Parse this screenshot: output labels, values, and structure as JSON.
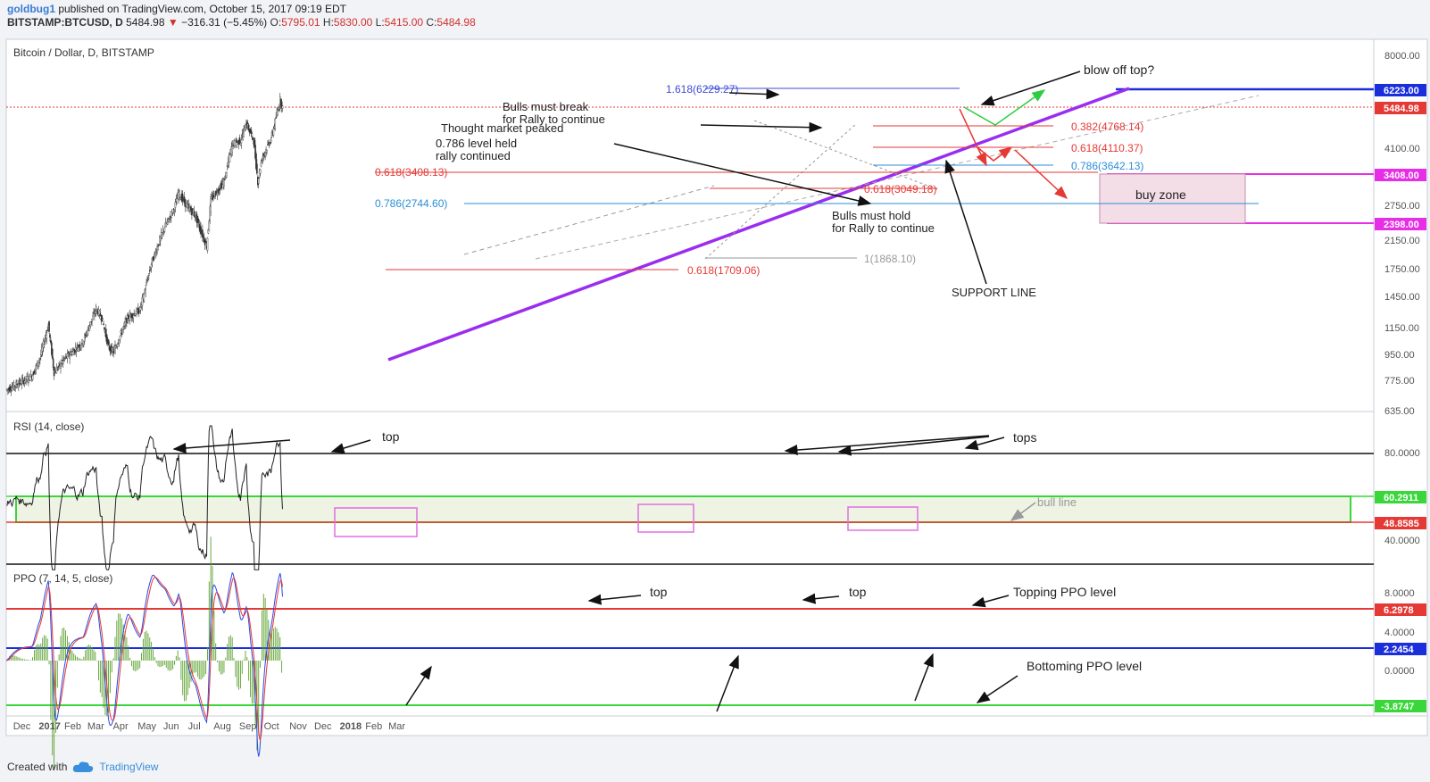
{
  "header": {
    "author": "goldbug1",
    "published": " published on TradingView.com, October 15, 2017 09:19 EDT",
    "symbol": "BITSTAMP:BTCUSD, D",
    "last": "5484.98",
    "change": "−316.31 (−5.45%)",
    "o_label": "O:",
    "o_val": "5795.01",
    "h_label": "H:",
    "h_val": "5830.00",
    "l_label": "L:",
    "l_val": "5415.00",
    "c_label": "C:",
    "c_val": "5484.98"
  },
  "footer": {
    "created": "Created with",
    "brand": "TradingView"
  },
  "panes": {
    "main_title": "Bitcoin / Dollar, D, BITSTAMP",
    "rsi_title": "RSI (14, close)",
    "ppo_title": "PPO (7, 14, 5, close)"
  },
  "badges": {
    "b6223": "6223.00",
    "b5484": "5484.98",
    "b3408": "3408.00",
    "b2398": "2398.00",
    "b60": "60.2911",
    "b48": "48.8585",
    "b629": "6.2978",
    "b224": "2.2454",
    "b387": "-3.8747"
  },
  "annotations": {
    "fib1618": "1.618(6229.27)",
    "bulls_break_1": "Bulls must break",
    "bulls_break_2": "for Rally to continue",
    "thought": "Thought market peaked",
    "level786_1": "0.786 level held",
    "level786_2": "rally continued",
    "fib0618a": "0.618(3408.13)",
    "fib0786a": "0.786(2744.60)",
    "fib0618b": "0.618(1709.06)",
    "fib1": "1(1868.10)",
    "fib0382": "0.382(4768.14)",
    "fib0618c": "0.618(4110.37)",
    "fib0786c": "0.786(3642.13)",
    "fib0618d": "0.618(3049.18)",
    "bulls_hold_1": "Bulls must hold",
    "bulls_hold_2": "for Rally to continue",
    "support": "SUPPORT LINE",
    "blowoff": "blow off top?",
    "buyzone": "buy zone",
    "rsi_top": "top",
    "rsi_tops": "tops",
    "bull_line": "bull line",
    "ppo_top1": "top",
    "ppo_top2": "top",
    "topping": "Topping PPO level",
    "bottoming": "Bottoming PPO level"
  },
  "chart_data": [
    {
      "type": "line",
      "pane": "price",
      "title": "Bitcoin / Dollar, D, BITSTAMP",
      "yscale": "log",
      "y_ticks": [
        8000,
        6223,
        5484.98,
        4100,
        3408,
        2750,
        2398,
        2150,
        1750,
        1450,
        1150,
        950,
        775,
        635
      ],
      "x_ticks": [
        "Dec",
        "2017",
        "Feb",
        "Mar",
        "Apr",
        "May",
        "Jun",
        "Jul",
        "Aug",
        "Sep",
        "Oct",
        "Nov",
        "Dec",
        "2018",
        "Feb",
        "Mar"
      ],
      "close": [
        {
          "x": "2016-11-14",
          "y": 705
        },
        {
          "x": "2016-12-01",
          "y": 745
        },
        {
          "x": "2016-12-15",
          "y": 780
        },
        {
          "x": "2016-12-25",
          "y": 890
        },
        {
          "x": "2017-01-04",
          "y": 1130
        },
        {
          "x": "2017-01-11",
          "y": 800
        },
        {
          "x": "2017-01-25",
          "y": 890
        },
        {
          "x": "2017-02-15",
          "y": 1000
        },
        {
          "x": "2017-03-03",
          "y": 1270
        },
        {
          "x": "2017-03-10",
          "y": 1190
        },
        {
          "x": "2017-03-18",
          "y": 960
        },
        {
          "x": "2017-03-24",
          "y": 930
        },
        {
          "x": "2017-04-10",
          "y": 1190
        },
        {
          "x": "2017-04-25",
          "y": 1260
        },
        {
          "x": "2017-05-10",
          "y": 1800
        },
        {
          "x": "2017-05-25",
          "y": 2300
        },
        {
          "x": "2017-06-05",
          "y": 2600
        },
        {
          "x": "2017-06-11",
          "y": 2950
        },
        {
          "x": "2017-06-20",
          "y": 2700
        },
        {
          "x": "2017-07-01",
          "y": 2500
        },
        {
          "x": "2017-07-15",
          "y": 2000
        },
        {
          "x": "2017-07-20",
          "y": 2800
        },
        {
          "x": "2017-08-05",
          "y": 3200
        },
        {
          "x": "2017-08-15",
          "y": 4200
        },
        {
          "x": "2017-08-25",
          "y": 4300
        },
        {
          "x": "2017-09-01",
          "y": 4900
        },
        {
          "x": "2017-09-10",
          "y": 4300
        },
        {
          "x": "2017-09-15",
          "y": 3200
        },
        {
          "x": "2017-09-20",
          "y": 3800
        },
        {
          "x": "2017-10-01",
          "y": 4350
        },
        {
          "x": "2017-10-12",
          "y": 5800
        },
        {
          "x": "2017-10-15",
          "y": 5484.98
        }
      ],
      "levels": [
        6229.27,
        4768.14,
        4110.37,
        3642.13,
        3408.13,
        3049.18,
        2744.6,
        1868.1,
        1709.06
      ],
      "buy_zone": [
        2398,
        3408
      ]
    },
    {
      "type": "line",
      "pane": "rsi",
      "title": "RSI (14, close)",
      "levels": [
        80,
        60.2911,
        48.8585,
        40,
        20
      ],
      "y_ticks": [
        80.0,
        60.2911,
        48.8585,
        40.0
      ]
    },
    {
      "type": "line",
      "pane": "ppo",
      "title": "PPO (7, 14, 5, close)",
      "levels": [
        6.2978,
        2.2454,
        -3.8747
      ],
      "y_ticks": [
        8.0,
        6.2978,
        4.0,
        2.2454,
        0.0,
        -3.8747
      ]
    }
  ]
}
